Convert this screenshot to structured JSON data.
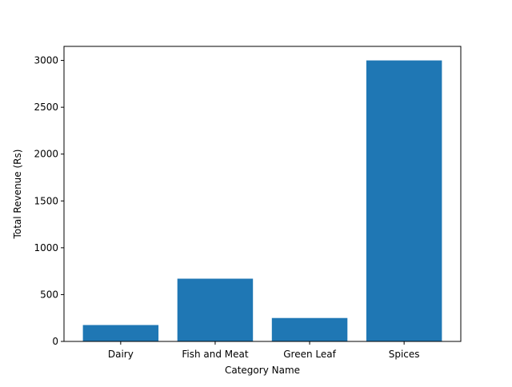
{
  "chart_data": {
    "type": "bar",
    "title": "",
    "xlabel": "Category Name",
    "ylabel": "Total Revenue (Rs)",
    "categories": [
      "Dairy",
      "Fish and Meat",
      "Green Leaf",
      "Spices"
    ],
    "values": [
      175,
      670,
      250,
      3000
    ],
    "ylim": [
      0,
      3150
    ],
    "yticks": [
      0,
      500,
      1000,
      1500,
      2000,
      2500,
      3000
    ],
    "grid": false,
    "bar_color": "#1f77b4"
  }
}
